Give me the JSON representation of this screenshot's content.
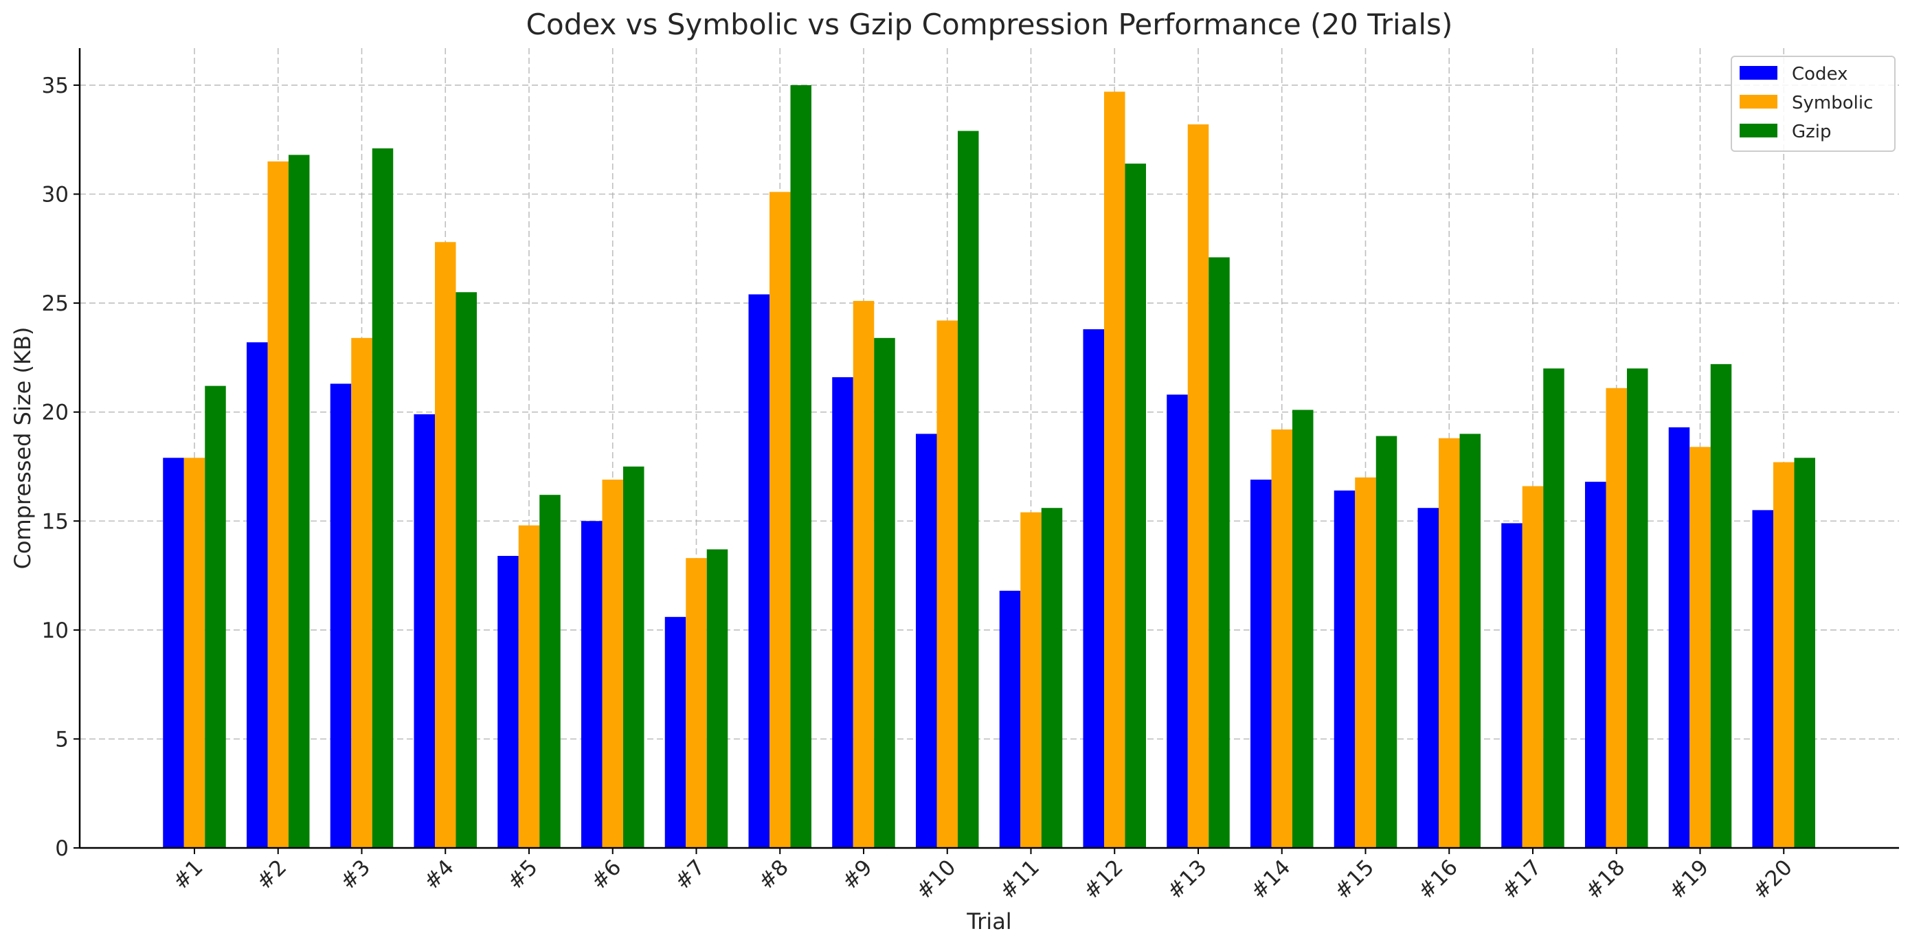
{
  "chart_data": {
    "type": "bar",
    "title": "Codex vs Symbolic vs Gzip Compression Performance (20 Trials)",
    "xlabel": "Trial",
    "ylabel": "Compressed Size (KB)",
    "ylim": [
      0,
      36.7
    ],
    "yticks": [
      0,
      5,
      10,
      15,
      20,
      25,
      30,
      35
    ],
    "grid": true,
    "legend_position": "top-right",
    "categories": [
      "#1",
      "#2",
      "#3",
      "#4",
      "#5",
      "#6",
      "#7",
      "#8",
      "#9",
      "#10",
      "#11",
      "#12",
      "#13",
      "#14",
      "#15",
      "#16",
      "#17",
      "#18",
      "#19",
      "#20"
    ],
    "series": [
      {
        "name": "Codex",
        "color": "#0000ff",
        "values": [
          17.9,
          23.2,
          21.3,
          19.9,
          13.4,
          15.0,
          10.6,
          25.4,
          21.6,
          19.0,
          11.8,
          23.8,
          20.8,
          16.9,
          16.4,
          15.6,
          14.9,
          16.8,
          19.3,
          15.5
        ]
      },
      {
        "name": "Symbolic",
        "color": "#ffa500",
        "values": [
          17.9,
          31.5,
          23.4,
          27.8,
          14.8,
          16.9,
          13.3,
          30.1,
          25.1,
          24.2,
          15.4,
          34.7,
          33.2,
          19.2,
          17.0,
          18.8,
          16.6,
          21.1,
          18.4,
          17.7
        ]
      },
      {
        "name": "Gzip",
        "color": "#008000",
        "values": [
          21.2,
          31.8,
          32.1,
          25.5,
          16.2,
          17.5,
          13.7,
          35.0,
          23.4,
          32.9,
          15.6,
          31.4,
          27.1,
          20.1,
          18.9,
          19.0,
          22.0,
          22.0,
          22.2,
          17.9
        ]
      }
    ]
  }
}
